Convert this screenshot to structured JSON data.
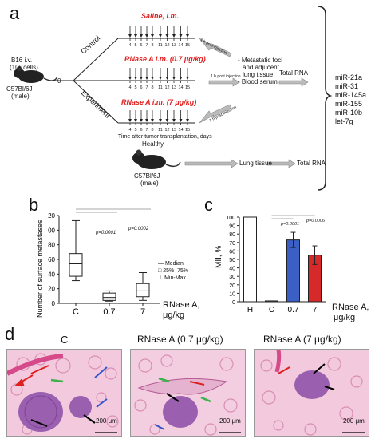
{
  "panel_a": {
    "letter": "a",
    "start_label": "B16 i.v.",
    "cells_label": "(10⁶ cells)",
    "mouse_strain": "C57Bl/6J",
    "mouse_sex": "(male)",
    "time_zero": "0",
    "branch_control": "Control",
    "branch_experiment": "Experiment",
    "arm_saline": "Saline, i.m.",
    "arm_rnase_low": "RNase A i.m. (0.7 μg/kg)",
    "arm_rnase_high": "RNase A i.m. (7 μg/kg)",
    "injection_days_left": [
      "4",
      "5",
      "6",
      "7",
      "8"
    ],
    "injection_days_right": [
      "11",
      "12",
      "13",
      "14",
      "15"
    ],
    "post_injection": "1 h post injection",
    "outcome_1": "- Metastatic foci",
    "outcome_2": "and adjucent",
    "outcome_3": "lung tissue",
    "outcome_4": "- Blood serum",
    "total_rna": "Total RNA",
    "time_axis_label": "Time after tumor transplantation, days",
    "healthy_label": "Healthy",
    "healthy_strain": "C57Bl/6J",
    "healthy_sex": "(male)",
    "lung_tissue": "Lung tissue",
    "total_rna_2": "Total RNA",
    "mirnas": [
      "miR-21a",
      "miR-31",
      "miR-145a",
      "miR-155",
      "miR-10b",
      "let-7g"
    ]
  },
  "panel_b": {
    "letter": "b",
    "ylabel": "Number of surface metastases",
    "xlabel_1": "RNase A,",
    "xlabel_2": "μg/kg",
    "p1": "p=0.0001",
    "p2": "p=0.0002",
    "legend_median": "Median",
    "legend_iqr": "25%–75%",
    "legend_minmax": "Min-Max"
  },
  "panel_c": {
    "letter": "c",
    "ylabel": "MII, %",
    "xlabel_1": "RNase A,",
    "xlabel_2": "μg/kg",
    "p1": "p=0.0001",
    "p2": "p=0.0006"
  },
  "panel_d": {
    "letter": "d",
    "title_1": "C",
    "title_2": "RNase A (0.7 μg/kg)",
    "title_3": "RNase A (7 μg/kg)",
    "scale_1": "200 μm",
    "scale_2": "200 μm",
    "scale_3": "200 μm"
  },
  "chart_data": [
    {
      "type": "box",
      "categories": [
        "C",
        "0.7",
        "7"
      ],
      "ylim": [
        0,
        120
      ],
      "yticks": [
        0,
        20,
        40,
        60,
        80,
        100,
        120
      ],
      "boxes": [
        {
          "min": 31,
          "q1": 37,
          "median": 54,
          "q3": 68,
          "max": 113
        },
        {
          "min": 3,
          "q1": 4,
          "median": 8,
          "q3": 14,
          "max": 17
        },
        {
          "min": 4,
          "q1": 9,
          "median": 17,
          "q3": 27,
          "max": 42
        }
      ]
    },
    {
      "type": "bar",
      "categories": [
        "H",
        "C",
        "0.7",
        "7"
      ],
      "values": [
        100,
        1,
        73,
        55
      ],
      "errors": [
        0,
        0,
        9,
        11
      ],
      "colors": [
        "#ffffff",
        "#ffffff",
        "#3b5fc4",
        "#d62a2a"
      ],
      "ylim": [
        0,
        100
      ],
      "yticks": [
        0,
        10,
        20,
        30,
        40,
        50,
        60,
        70,
        80,
        90,
        100
      ]
    }
  ]
}
